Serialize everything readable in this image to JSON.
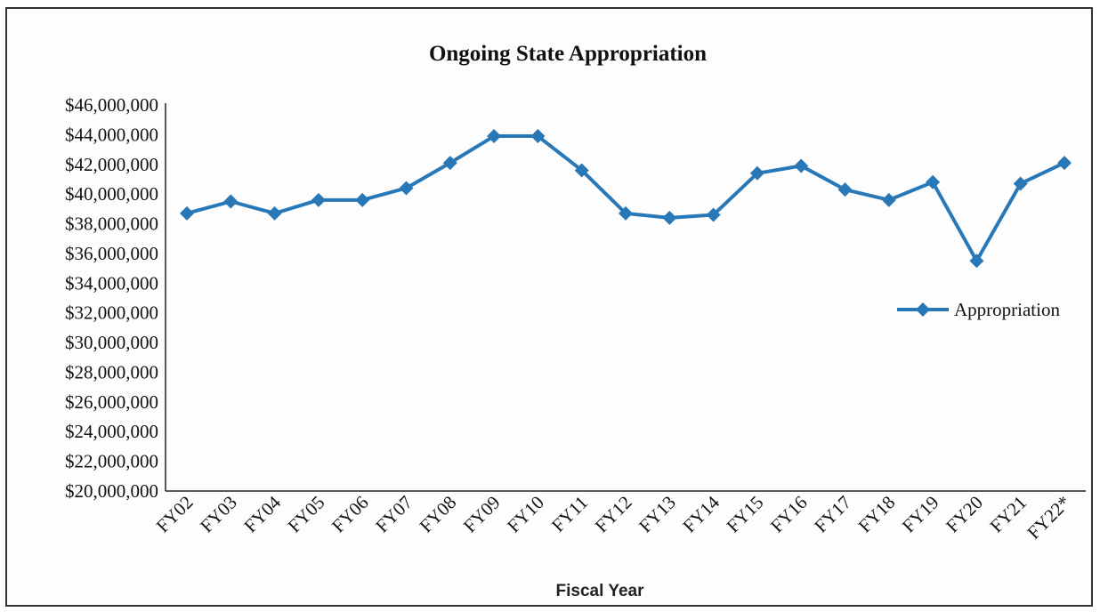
{
  "chart_data": {
    "type": "line",
    "title": "Ongoing State Appropriation",
    "xlabel": "Fiscal Year",
    "ylabel": "",
    "ylim": [
      20000000,
      46000000
    ],
    "y_ticks": [
      20000000,
      22000000,
      24000000,
      26000000,
      28000000,
      30000000,
      32000000,
      34000000,
      36000000,
      38000000,
      40000000,
      42000000,
      44000000,
      46000000
    ],
    "y_tick_labels": [
      "$20,000,000",
      "$22,000,000",
      "$24,000,000",
      "$26,000,000",
      "$28,000,000",
      "$30,000,000",
      "$32,000,000",
      "$34,000,000",
      "$36,000,000",
      "$38,000,000",
      "$40,000,000",
      "$42,000,000",
      "$44,000,000",
      "$46,000,000"
    ],
    "categories": [
      "FY02",
      "FY03",
      "FY04",
      "FY05",
      "FY06",
      "FY07",
      "FY08",
      "FY09",
      "FY10",
      "FY11",
      "FY12",
      "FY13",
      "FY14",
      "FY15",
      "FY16",
      "FY17",
      "FY18",
      "FY19",
      "FY20",
      "FY21",
      "FY22*"
    ],
    "series": [
      {
        "name": "Appropriation",
        "color": "#2878b8",
        "values": [
          38700000,
          39500000,
          38700000,
          39600000,
          39600000,
          40400000,
          42100000,
          43900000,
          43900000,
          41600000,
          38700000,
          38400000,
          38600000,
          41400000,
          41900000,
          40300000,
          39600000,
          40800000,
          35500000,
          40700000,
          42100000
        ]
      }
    ],
    "grid": false,
    "legend_position": "right",
    "marker": "diamond"
  }
}
